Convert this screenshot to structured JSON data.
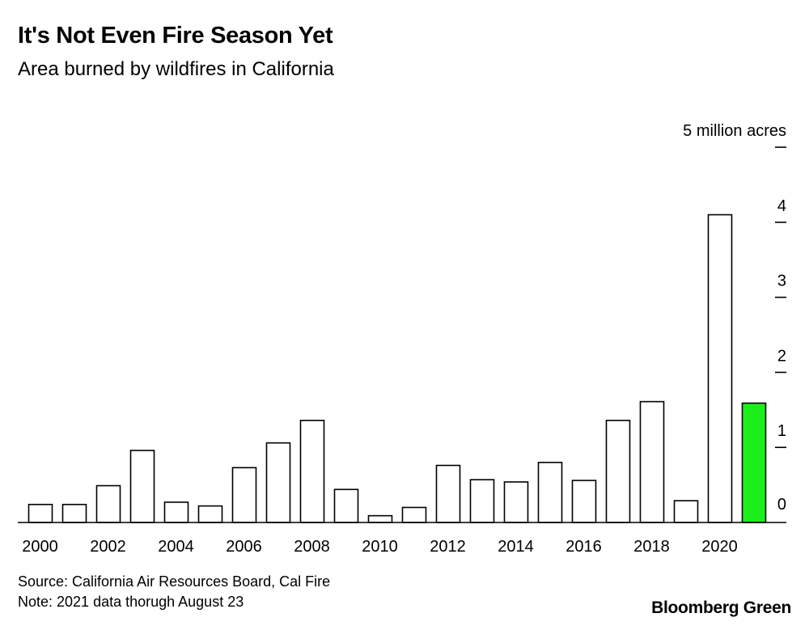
{
  "header": {
    "title": "It's Not Even Fire Season Yet",
    "subtitle": "Area burned by wildfires in California"
  },
  "footer": {
    "source": "Source: California Air Resources Board, Cal Fire",
    "note": "Note: 2021 data thorugh August 23",
    "brand": "Bloomberg Green"
  },
  "colors": {
    "bar_fill": "#ffffff",
    "bar_stroke": "#000000",
    "highlight": "#1bee1b"
  },
  "chart_data": {
    "type": "bar",
    "title": "It's Not Even Fire Season Yet",
    "subtitle": "Area burned by wildfires in California",
    "ylabel": "",
    "yunit": "million acres",
    "categories": [
      "2000",
      "2001",
      "2002",
      "2003",
      "2004",
      "2005",
      "2006",
      "2007",
      "2008",
      "2009",
      "2010",
      "2011",
      "2012",
      "2013",
      "2014",
      "2015",
      "2016",
      "2017",
      "2018",
      "2019",
      "2020",
      "2021"
    ],
    "values": [
      0.24,
      0.24,
      0.49,
      0.96,
      0.27,
      0.22,
      0.73,
      1.06,
      1.36,
      0.44,
      0.09,
      0.2,
      0.76,
      0.57,
      0.54,
      0.8,
      0.56,
      1.36,
      1.61,
      0.29,
      4.1,
      1.59
    ],
    "highlight_index": 21,
    "xticks": [
      "2000",
      "2002",
      "2004",
      "2006",
      "2008",
      "2010",
      "2012",
      "2014",
      "2016",
      "2018",
      "2020"
    ],
    "yticks": [
      0,
      1,
      2,
      3,
      4,
      5
    ],
    "ytick_labels": [
      "0",
      "1",
      "2",
      "3",
      "4",
      "5 million acres"
    ],
    "ylim": [
      0,
      5
    ],
    "grid": false,
    "legend": "none"
  }
}
